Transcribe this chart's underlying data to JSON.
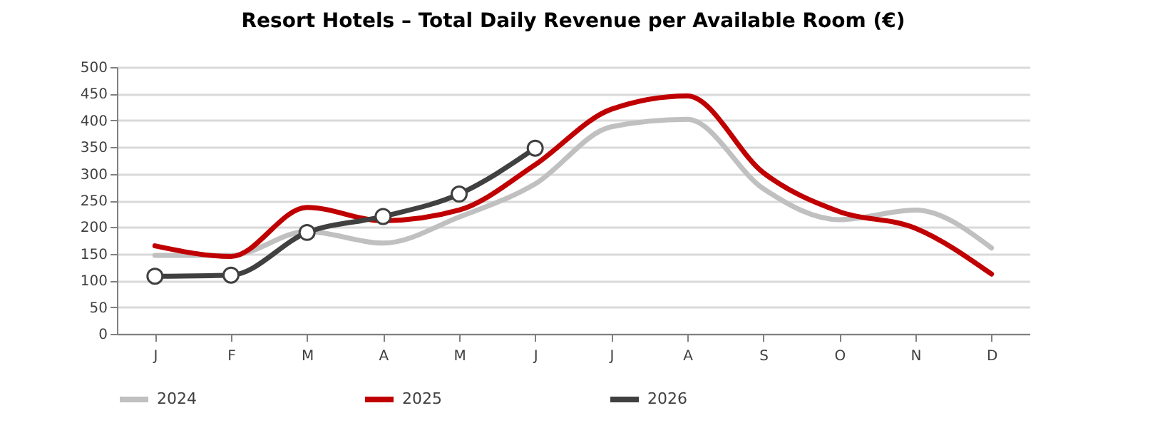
{
  "chart_data": {
    "type": "line",
    "title": "Resort Hotels – Total Daily Revenue per Available Room (€)",
    "categories": [
      "J",
      "F",
      "M",
      "A",
      "M",
      "J",
      "J",
      "A",
      "S",
      "O",
      "N",
      "D"
    ],
    "series": [
      {
        "name": "2024",
        "color": "#c0c0c0",
        "values": [
          147,
          147,
          192,
          170,
          219,
          281,
          388,
          402,
          272,
          214,
          232,
          161
        ]
      },
      {
        "name": "2025",
        "color": "#c00000",
        "values": [
          165,
          145,
          237,
          212,
          232,
          317,
          421,
          446,
          302,
          229,
          198,
          112
        ]
      },
      {
        "name": "2026",
        "color": "#404040",
        "marker": "circle",
        "values": [
          108,
          110,
          190,
          220,
          262,
          348,
          null,
          null,
          null,
          null,
          null,
          null
        ]
      }
    ],
    "ylim": [
      0,
      500
    ],
    "yticks": [
      0,
      50,
      100,
      150,
      200,
      250,
      300,
      350,
      400,
      450,
      500
    ],
    "grid": "y",
    "legend": "bottom",
    "line_style": "solid"
  }
}
